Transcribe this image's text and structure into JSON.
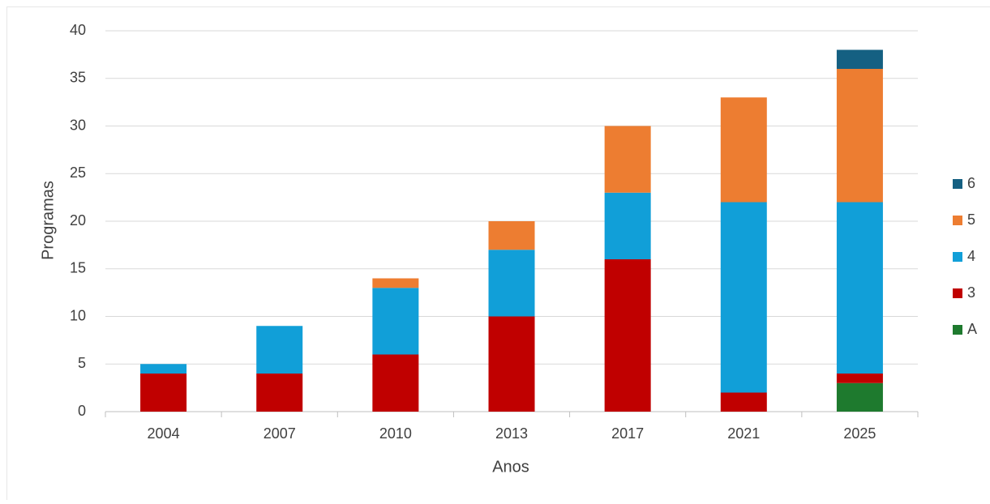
{
  "chart_data": {
    "type": "stacked_bar",
    "x_label": "Anos",
    "y_label": "Programas",
    "categories": [
      "2004",
      "2007",
      "2010",
      "2013",
      "2017",
      "2021",
      "2025"
    ],
    "series": [
      {
        "name": "A",
        "color": "#1e7a2e",
        "values": [
          0,
          0,
          0,
          0,
          0,
          0,
          3
        ]
      },
      {
        "name": "3",
        "color": "#c00000",
        "values": [
          4,
          4,
          6,
          10,
          16,
          2,
          1
        ]
      },
      {
        "name": "4",
        "color": "#119fd8",
        "values": [
          1,
          5,
          7,
          7,
          7,
          20,
          18
        ]
      },
      {
        "name": "5",
        "color": "#ed7d31",
        "values": [
          0,
          0,
          1,
          3,
          7,
          11,
          14
        ]
      },
      {
        "name": "6",
        "color": "#156082",
        "values": [
          0,
          0,
          0,
          0,
          0,
          0,
          2
        ]
      }
    ],
    "ylim": [
      0,
      40
    ],
    "yticks": [
      0,
      5,
      10,
      15,
      20,
      25,
      30,
      35,
      40
    ],
    "grid": true,
    "legend": "right"
  }
}
